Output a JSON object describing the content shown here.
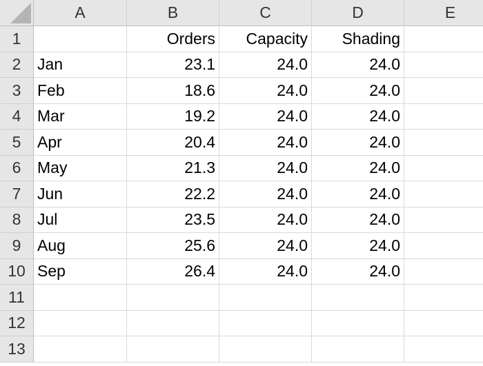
{
  "spreadsheet": {
    "column_headers": [
      "A",
      "B",
      "C",
      "D",
      "E"
    ],
    "row_headers": [
      "1",
      "2",
      "3",
      "4",
      "5",
      "6",
      "7",
      "8",
      "9",
      "10",
      "11",
      "12",
      "13"
    ],
    "rows": [
      [
        "",
        "Orders",
        "Capacity",
        "Shading",
        ""
      ],
      [
        "Jan",
        "23.1",
        "24.0",
        "24.0",
        ""
      ],
      [
        "Feb",
        "18.6",
        "24.0",
        "24.0",
        ""
      ],
      [
        "Mar",
        "19.2",
        "24.0",
        "24.0",
        ""
      ],
      [
        "Apr",
        "20.4",
        "24.0",
        "24.0",
        ""
      ],
      [
        "May",
        "21.3",
        "24.0",
        "24.0",
        ""
      ],
      [
        "Jun",
        "22.2",
        "24.0",
        "24.0",
        ""
      ],
      [
        "Jul",
        "23.5",
        "24.0",
        "24.0",
        ""
      ],
      [
        "Aug",
        "25.6",
        "24.0",
        "24.0",
        ""
      ],
      [
        "Sep",
        "26.4",
        "24.0",
        "24.0",
        ""
      ],
      [
        "",
        "",
        "",
        "",
        ""
      ],
      [
        "",
        "",
        "",
        "",
        ""
      ],
      [
        "",
        "",
        "",
        "",
        ""
      ]
    ]
  }
}
